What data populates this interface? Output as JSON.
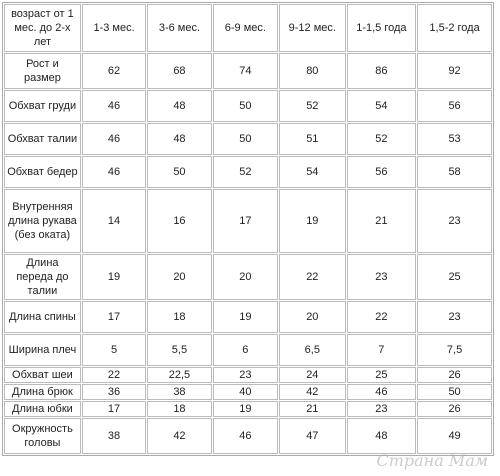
{
  "table": {
    "header": [
      "возраст от 1 мес. до 2-х лет",
      "1-3 мес.",
      "3-6 мес.",
      "6-9 мес.",
      "9-12 мес.",
      "1-1,5 года",
      "1,5-2 года"
    ],
    "rows": [
      [
        "Рост и размер",
        "62",
        "68",
        "74",
        "80",
        "86",
        "92"
      ],
      [
        "Обхват груди",
        "46",
        "48",
        "50",
        "52",
        "54",
        "56"
      ],
      [
        "Обхват талии",
        "46",
        "48",
        "50",
        "51",
        "52",
        "53"
      ],
      [
        "Обхват бедер",
        "46",
        "50",
        "52",
        "54",
        "56",
        "58"
      ],
      [
        "Внутренняя длина рукава (без оката)",
        "14",
        "16",
        "17",
        "19",
        "21",
        "23"
      ],
      [
        "Длина переда до талии",
        "19",
        "20",
        "20",
        "22",
        "23",
        "25"
      ],
      [
        "Длина спины",
        "17",
        "18",
        "19",
        "20",
        "22",
        "23"
      ],
      [
        "Ширина плеч",
        "5",
        "5,5",
        "6",
        "6,5",
        "7",
        "7,5"
      ],
      [
        "Обхват шеи",
        "22",
        "22,5",
        "23",
        "24",
        "25",
        "26"
      ],
      [
        "Длина брюк",
        "36",
        "38",
        "40",
        "42",
        "46",
        "50"
      ],
      [
        "Длина юбки",
        "17",
        "18",
        "19",
        "21",
        "23",
        "26"
      ],
      [
        "Окружность головы",
        "38",
        "42",
        "46",
        "47",
        "48",
        "49"
      ]
    ]
  },
  "watermark": "Страна Мам"
}
